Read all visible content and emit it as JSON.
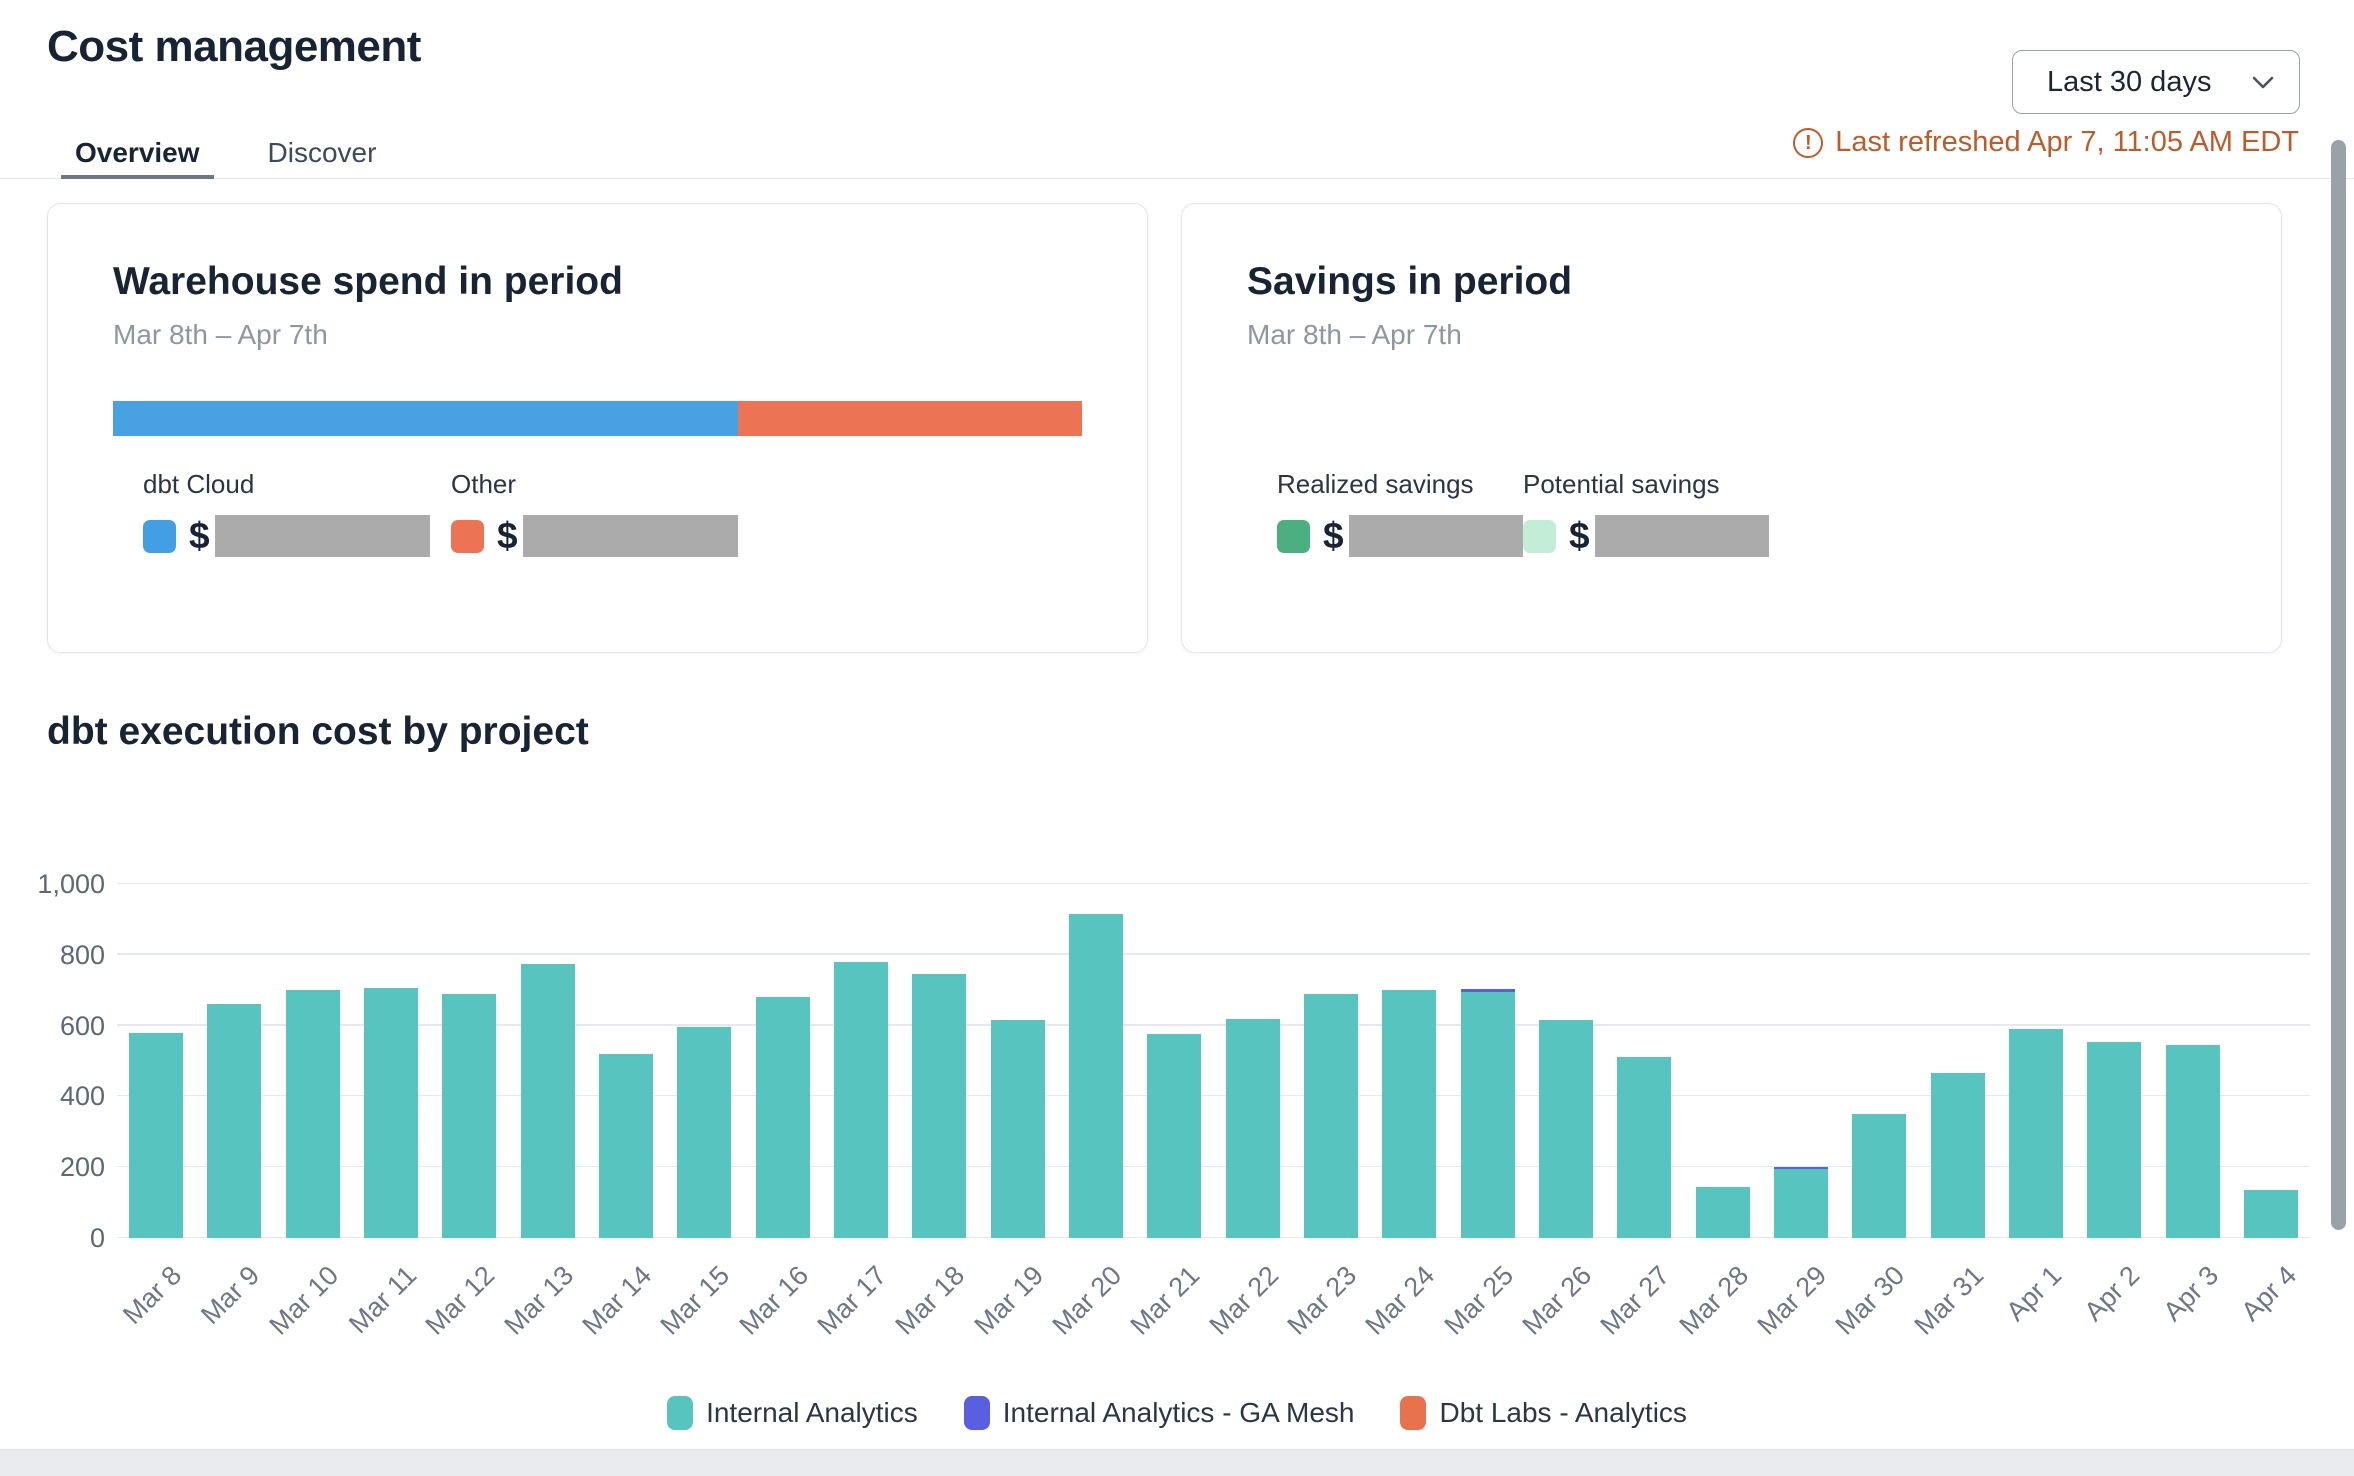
{
  "header": {
    "title": "Cost management",
    "period_selector": {
      "value": "Last 30 days"
    },
    "last_refreshed": "Last refreshed Apr 7, 11:05 AM EDT",
    "tabs": [
      {
        "label": "Overview",
        "active": true
      },
      {
        "label": "Discover",
        "active": false
      }
    ]
  },
  "cards": {
    "warehouse_spend": {
      "title": "Warehouse spend in period",
      "date_range": "Mar 8th – Apr 7th",
      "bar_segments": [
        {
          "name": "dbt Cloud",
          "color": "#47a1e3",
          "percent": 64.5
        },
        {
          "name": "Other",
          "color": "#ec7455",
          "percent": 35.5
        }
      ],
      "legend": [
        {
          "label": "dbt Cloud",
          "swatch_color": "#429fe3",
          "currency_symbol": "$",
          "value_redacted": true
        },
        {
          "label": "Other",
          "swatch_color": "#ec7455",
          "currency_symbol": "$",
          "value_redacted": true
        }
      ]
    },
    "savings": {
      "title": "Savings in period",
      "date_range": "Mar 8th – Apr 7th",
      "legend": [
        {
          "label": "Realized savings",
          "swatch_color": "#4caf82",
          "currency_symbol": "$",
          "value_redacted": true
        },
        {
          "label": "Potential savings",
          "swatch_color": "#c4edd8",
          "currency_symbol": "$",
          "value_redacted": true
        }
      ]
    }
  },
  "chart": {
    "title": "dbt execution cost by project"
  },
  "chart_data": {
    "type": "bar",
    "stacked": true,
    "title": "dbt execution cost by project",
    "xlabel": "",
    "ylabel": "",
    "ylim": [
      0,
      1000
    ],
    "yticks": [
      0,
      200,
      400,
      600,
      800,
      1000
    ],
    "ytick_labels": [
      "0",
      "200",
      "400",
      "600",
      "800",
      "1,000"
    ],
    "grid": true,
    "legend_position": "bottom",
    "categories": [
      "Mar 8",
      "Mar 9",
      "Mar 10",
      "Mar 11",
      "Mar 12",
      "Mar 13",
      "Mar 14",
      "Mar 15",
      "Mar 16",
      "Mar 17",
      "Mar 18",
      "Mar 19",
      "Mar 20",
      "Mar 21",
      "Mar 22",
      "Mar 23",
      "Mar 24",
      "Mar 25",
      "Mar 26",
      "Mar 27",
      "Mar 28",
      "Mar 29",
      "Mar 30",
      "Mar 31",
      "Apr 1",
      "Apr 2",
      "Apr 3",
      "Apr 4"
    ],
    "series": [
      {
        "name": "Internal Analytics",
        "color": "#58c4bf",
        "values": [
          580,
          660,
          700,
          705,
          690,
          775,
          520,
          595,
          680,
          780,
          745,
          615,
          915,
          575,
          620,
          690,
          700,
          695,
          615,
          510,
          145,
          195,
          350,
          465,
          590,
          555,
          545,
          135
        ]
      },
      {
        "name": "Internal Analytics - GA Mesh",
        "color": "#5a5fe0",
        "values": [
          0,
          0,
          0,
          0,
          0,
          0,
          0,
          0,
          0,
          0,
          0,
          0,
          0,
          0,
          0,
          0,
          0,
          8,
          0,
          0,
          0,
          5,
          0,
          0,
          0,
          0,
          0,
          0
        ]
      },
      {
        "name": "Dbt Labs - Analytics",
        "color": "#e8714e",
        "values": [
          0,
          0,
          0,
          0,
          0,
          0,
          0,
          0,
          0,
          0,
          0,
          0,
          0,
          0,
          0,
          0,
          0,
          0,
          0,
          0,
          0,
          0,
          0,
          0,
          0,
          0,
          0,
          0
        ]
      }
    ]
  },
  "colors": {
    "accent_blue": "#47a1e3",
    "accent_orange": "#ec7455",
    "accent_teal": "#58c4bf",
    "accent_purple": "#5a5fe0",
    "green_realized": "#4caf82",
    "green_potential": "#c4edd8",
    "redacted_gray": "#ababab",
    "refresh_warning": "#bd5c28"
  }
}
